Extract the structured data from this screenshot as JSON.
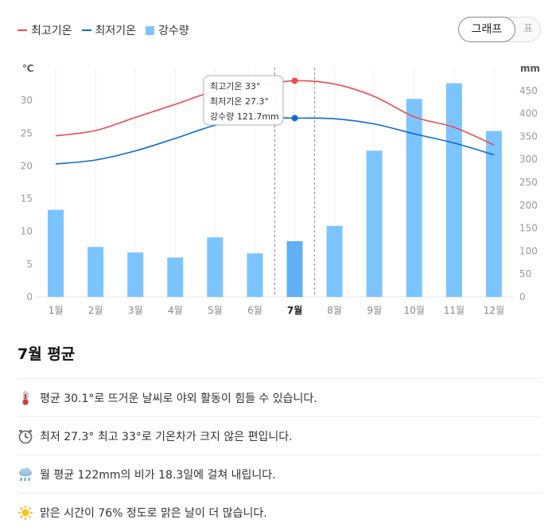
{
  "legend": {
    "max_label": "최고기온",
    "min_label": "최저기온",
    "rain_label": "강수량"
  },
  "toggle": {
    "graph_label": "그래프",
    "table_label": "표"
  },
  "colors": {
    "max": "#ef4a4a",
    "min": "#0b6bd1",
    "rain": "#7cc4ff",
    "rain_selected": "#5fb0f5"
  },
  "chart_data": {
    "type": "bar",
    "categories": [
      "1월",
      "2월",
      "3월",
      "4월",
      "5월",
      "6월",
      "7월",
      "8월",
      "9월",
      "10월",
      "11월",
      "12월"
    ],
    "selected_index": 6,
    "series": [
      {
        "name": "최고기온",
        "type": "line",
        "axis": "left",
        "values": [
          24.6,
          25.4,
          27.4,
          29.4,
          31.4,
          32.2,
          33.0,
          32.5,
          30.6,
          27.5,
          25.9,
          23.2
        ]
      },
      {
        "name": "최저기온",
        "type": "line",
        "axis": "left",
        "values": [
          20.3,
          20.9,
          22.3,
          24.2,
          26.2,
          27.3,
          27.3,
          27.2,
          26.4,
          24.9,
          23.5,
          21.7
        ]
      },
      {
        "name": "강수량",
        "type": "bar",
        "axis": "right",
        "values": [
          190,
          109,
          97,
          86,
          130,
          95,
          121.7,
          155,
          319,
          432,
          466,
          362
        ]
      }
    ],
    "y_left": {
      "unit": "℃",
      "min": 0,
      "max": 35,
      "ticks": [
        0,
        5,
        10,
        15,
        20,
        25,
        30
      ]
    },
    "y_right": {
      "unit": "mm",
      "min": 0,
      "max": 500,
      "ticks": [
        0,
        50,
        100,
        150,
        200,
        250,
        300,
        350,
        400,
        450
      ]
    },
    "tooltip": {
      "max_text": "최고기온 33°",
      "min_text": "최저기온 27.3°",
      "rain_text": "강수량 121.7mm"
    }
  },
  "summary": {
    "title": "7월 평균",
    "rows": [
      {
        "icon": "thermometer-icon",
        "text": "평균 30.1°로 뜨거운 날씨로 야외 활동이 힘들 수 있습니다."
      },
      {
        "icon": "clock-icon",
        "text": "최저 27.3° 최고 33°로 기온차가 크지 않은 편입니다."
      },
      {
        "icon": "rain-cloud-icon",
        "text": "월 평균 122mm의 비가 18.3일에 걸쳐 내립니다."
      },
      {
        "icon": "sun-icon",
        "text": "맑은 시간이 76% 정도로 맑은 날이 더 많습니다."
      }
    ]
  }
}
